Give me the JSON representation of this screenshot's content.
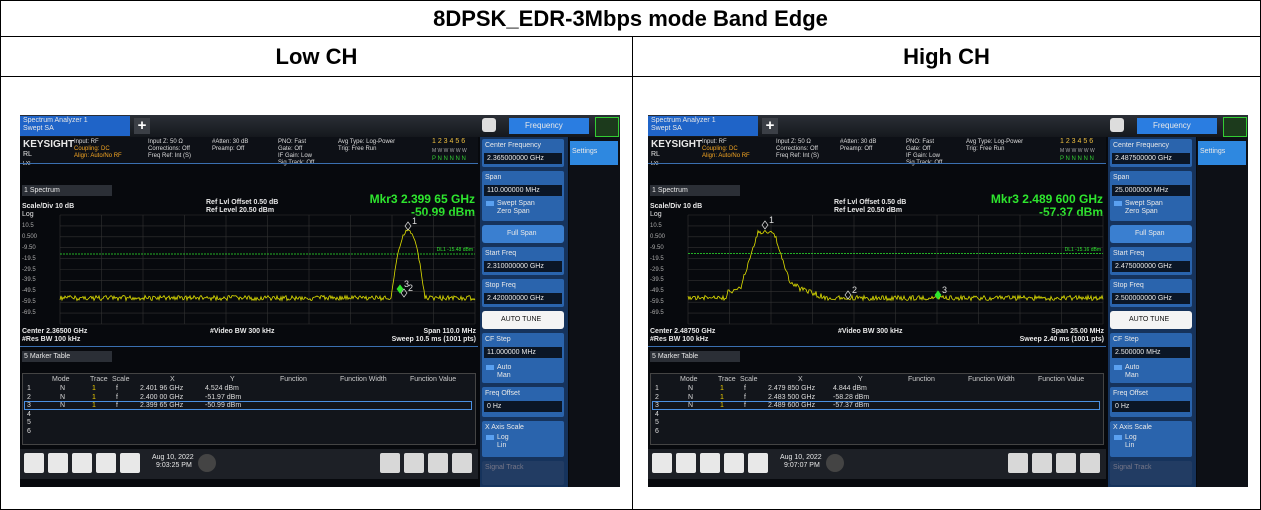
{
  "title": "8DPSK_EDR-3Mbps mode Band Edge",
  "columns": [
    "Low CH",
    "High CH"
  ],
  "panels": [
    {
      "tab": "Spectrum Analyzer 1",
      "mode": "Swept SA",
      "menu": "Frequency",
      "brand": "KEYSIGHT",
      "rl": "RL",
      "lxi": "LXI",
      "info": [
        "Input: RF",
        "Coupling: DC",
        "Align: Auto/No RF",
        "Input Z: 50 Ω",
        "Corrections: Off",
        "Freq Ref: Int (S)",
        "#Atten: 30 dB",
        "Preamp: Off",
        "PNO: Fast",
        "Gate: Off",
        "IF Gain: Low",
        "Sig Track: Off",
        "Avg Type: Log-Power",
        "Trig: Free Run"
      ],
      "trace_ind": [
        "1 2 3 4 5 6",
        "M W W W W W",
        "P N N N N N"
      ],
      "window": "1 Spectrum",
      "ref_offset": "Ref Lvl Offset 0.50 dB",
      "ref_level": "Ref Level 20.50 dBm",
      "scale": "Scale/Div 10 dB",
      "log": "Log",
      "marker_freq": "Mkr3  2.399 65 GHz",
      "marker_amp": "-50.99 dBm",
      "ylabels": [
        "10.5",
        "0.500",
        "-9.50",
        "-19.5",
        "-29.5",
        "-39.5",
        "-49.5",
        "-59.5",
        "-69.5"
      ],
      "display_line": "DL1 -15.48 dBm",
      "center": "Center 2.36500 GHz",
      "rbw": "#Res BW 100 kHz",
      "vbw": "#Video BW 300 kHz",
      "span": "Span 110.0 MHz",
      "sweep": "Sweep 10.5 ms (1001 pts)",
      "table_title": "5 Marker Table",
      "table_header": [
        "Mode",
        "Trace",
        "Scale",
        "X",
        "Y",
        "Function",
        "Function Width",
        "Function Value"
      ],
      "rows": [
        [
          "1",
          "N",
          "1",
          "f",
          "2.401 96 GHz",
          "4.524 dBm"
        ],
        [
          "2",
          "N",
          "1",
          "f",
          "2.400 00 GHz",
          "-51.97 dBm"
        ],
        [
          "3",
          "N",
          "1",
          "f",
          "2.399 65 GHz",
          "-50.99 dBm"
        ],
        [
          "4"
        ],
        [
          "5"
        ],
        [
          "6"
        ]
      ],
      "date": "Aug 10, 2022",
      "time": "9:03:25 PM",
      "settings": "Settings",
      "softkeys": {
        "center_label": "Center Frequency",
        "center_value": "2.365000000 GHz",
        "span_label": "Span",
        "span_value": "110.000000 MHz",
        "swept": "Swept Span",
        "zero": "Zero Span",
        "full": "Full Span",
        "start_label": "Start Freq",
        "start_value": "2.310000000 GHz",
        "stop_label": "Stop Freq",
        "stop_value": "2.420000000 GHz",
        "auto_tune": "AUTO TUNE",
        "cf_label": "CF Step",
        "cf_value": "11.000000 MHz",
        "auto": "Auto",
        "man": "Man",
        "offset_label": "Freq Offset",
        "offset_value": "0 Hz",
        "xscale_label": "X Axis Scale",
        "xlog": "Log",
        "xlin": "Lin",
        "signal_track": "Signal Track"
      }
    },
    {
      "tab": "Spectrum Analyzer 1",
      "mode": "Swept SA",
      "menu": "Frequency",
      "brand": "KEYSIGHT",
      "rl": "RL",
      "lxi": "LXI",
      "info": [
        "Input: RF",
        "Coupling: DC",
        "Align: Auto/No RF",
        "Input Z: 50 Ω",
        "Corrections: Off",
        "Freq Ref: Int (S)",
        "#Atten: 30 dB",
        "Preamp: Off",
        "PNO: Fast",
        "Gate: Off",
        "IF Gain: Low",
        "Sig Track: Off",
        "Avg Type: Log-Power",
        "Trig: Free Run"
      ],
      "trace_ind": [
        "1 2 3 4 5 6",
        "M W W W W W",
        "P N N N N N"
      ],
      "window": "1 Spectrum",
      "ref_offset": "Ref Lvl Offset 0.50 dB",
      "ref_level": "Ref Level 20.50 dBm",
      "scale": "Scale/Div 10 dB",
      "log": "Log",
      "marker_freq": "Mkr3  2.489 600 GHz",
      "marker_amp": "-57.37 dBm",
      "ylabels": [
        "10.5",
        "0.500",
        "-9.50",
        "-19.5",
        "-29.5",
        "-39.5",
        "-49.5",
        "-59.5",
        "-69.5"
      ],
      "display_line": "DL1 -15.16 dBm",
      "center": "Center 2.48750 GHz",
      "rbw": "#Res BW 100 kHz",
      "vbw": "#Video BW 300 kHz",
      "span": "Span 25.00 MHz",
      "sweep": "Sweep 2.40 ms (1001 pts)",
      "table_title": "5 Marker Table",
      "table_header": [
        "Mode",
        "Trace",
        "Scale",
        "X",
        "Y",
        "Function",
        "Function Width",
        "Function Value"
      ],
      "rows": [
        [
          "1",
          "N",
          "1",
          "f",
          "2.479 850 GHz",
          "4.844 dBm"
        ],
        [
          "2",
          "N",
          "1",
          "f",
          "2.483 500 GHz",
          "-58.28 dBm"
        ],
        [
          "3",
          "N",
          "1",
          "f",
          "2.489 600 GHz",
          "-57.37 dBm"
        ],
        [
          "4"
        ],
        [
          "5"
        ],
        [
          "6"
        ]
      ],
      "date": "Aug 10, 2022",
      "time": "9:07:07 PM",
      "settings": "Settings",
      "softkeys": {
        "center_label": "Center Frequency",
        "center_value": "2.487500000 GHz",
        "span_label": "Span",
        "span_value": "25.0000000 MHz",
        "swept": "Swept Span",
        "zero": "Zero Span",
        "full": "Full Span",
        "start_label": "Start Freq",
        "start_value": "2.475000000 GHz",
        "stop_label": "Stop Freq",
        "stop_value": "2.500000000 GHz",
        "auto_tune": "AUTO TUNE",
        "cf_label": "CF Step",
        "cf_value": "2.500000 MHz",
        "auto": "Auto",
        "man": "Man",
        "offset_label": "Freq Offset",
        "offset_value": "0 Hz",
        "xscale_label": "X Axis Scale",
        "xlog": "Log",
        "xlin": "Lin",
        "signal_track": "Signal Track"
      }
    }
  ]
}
